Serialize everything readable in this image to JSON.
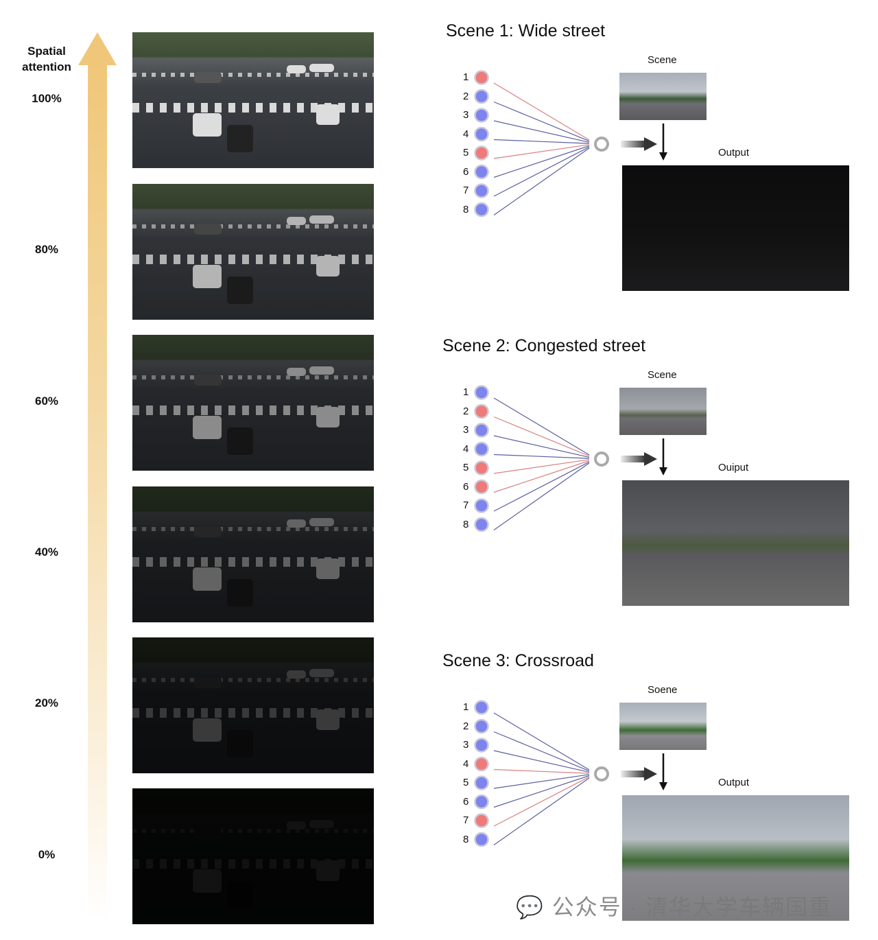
{
  "axis": {
    "title": "Spatial attention",
    "ticks": [
      "100%",
      "80%",
      "60%",
      "40%",
      "20%",
      "0%"
    ],
    "accent_color": "#f0c77a"
  },
  "attention_levels": [
    1.0,
    0.8,
    0.6,
    0.4,
    0.2,
    0.0
  ],
  "scenes": [
    {
      "title": "Scene 1: Wide street",
      "scene_label": "Scene",
      "output_label": "Output",
      "nodes": [
        "1",
        "2",
        "3",
        "4",
        "5",
        "6",
        "7",
        "8"
      ],
      "node_colors": [
        "red",
        "blue",
        "blue",
        "blue",
        "red",
        "blue",
        "blue",
        "blue"
      ],
      "output_style": "dark"
    },
    {
      "title": "Scene 2: Congested street",
      "scene_label": "Scene",
      "output_label": "Ouiput",
      "nodes": [
        "1",
        "2",
        "3",
        "4",
        "5",
        "6",
        "7",
        "8"
      ],
      "node_colors": [
        "blue",
        "red",
        "blue",
        "blue",
        "red",
        "red",
        "blue",
        "blue"
      ],
      "output_style": "overcast"
    },
    {
      "title": "Scene 3: Crossroad",
      "scene_label": "Soene",
      "output_label": "Output",
      "nodes": [
        "1",
        "2",
        "3",
        "4",
        "5",
        "6",
        "7",
        "8"
      ],
      "node_colors": [
        "blue",
        "blue",
        "blue",
        "red",
        "blue",
        "blue",
        "red",
        "blue"
      ],
      "output_style": "bright"
    }
  ],
  "colors": {
    "red": "#ef7a7a",
    "blue": "#7d84ee",
    "red_line": "#d98080",
    "blue_line": "#5a5f9e"
  },
  "watermark": "公众号 · 清华大学车辆国重"
}
